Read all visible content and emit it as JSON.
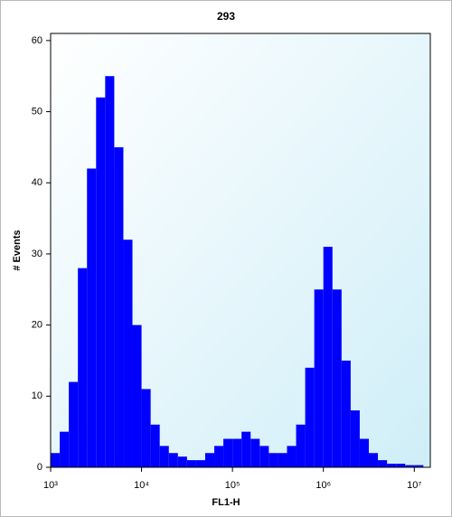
{
  "chart_data": {
    "type": "histogram",
    "title": "293",
    "x_label": "FL1-H",
    "y_label": "# Events",
    "x_log": true,
    "color": "#0000ff",
    "bins": [
      1000,
      1259,
      1585,
      1995,
      2512,
      3162,
      3981,
      5012,
      6310,
      7943,
      10000,
      12589,
      15849,
      19953,
      25119,
      31623,
      39811,
      50119,
      63096,
      79433,
      100000,
      125893,
      158489,
      199526,
      251189,
      316228,
      398107,
      501187,
      630957,
      794328,
      1000000,
      1258925,
      1584893,
      1995262,
      2511886,
      3162278,
      3981072,
      5011872,
      6309573,
      7943282,
      10000000,
      12589254
    ],
    "values": [
      2,
      5,
      12,
      28,
      42,
      52,
      55,
      45,
      32,
      20,
      11,
      6,
      3,
      2,
      1.5,
      1,
      1,
      2,
      3,
      4,
      4,
      5,
      4,
      3,
      2,
      2,
      3,
      6,
      14,
      25,
      31,
      25,
      15,
      8,
      4,
      2,
      1,
      0.5,
      0.5,
      0.3,
      0.3
    ],
    "xlim": [
      1000,
      15000000
    ],
    "ylim": [
      0,
      61
    ],
    "xticks": [
      {
        "value": 1000,
        "label": "10³"
      },
      {
        "value": 10000,
        "label": "10⁴"
      },
      {
        "value": 100000,
        "label": "10⁵"
      },
      {
        "value": 1000000,
        "label": "10⁶"
      },
      {
        "value": 10000000,
        "label": "10⁷"
      }
    ],
    "yticks": [
      0,
      10,
      20,
      30,
      40,
      50,
      60
    ]
  }
}
